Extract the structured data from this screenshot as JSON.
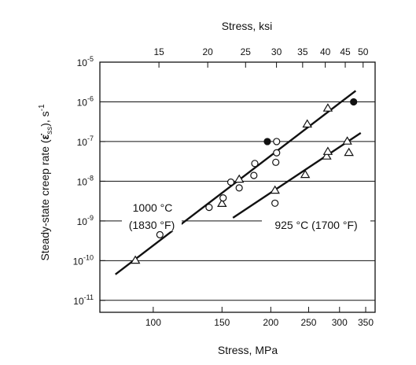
{
  "chart_data": {
    "type": "scatter",
    "xlabel_bottom": "Stress, MPa",
    "xlabel_top": "Stress, ksi",
    "ylabel_text": "Steady-state creep rate (",
    "ylabel_symbol": "ε̇",
    "ylabel_subscript": "ss",
    "ylabel_suffix": "), s",
    "ylabel_superscript": "-1",
    "x_scale": "log",
    "y_scale": "log",
    "xlim_MPa": [
      73,
      370
    ],
    "ylim": [
      5e-12,
      1e-05
    ],
    "grid": "horizontal-at-decades",
    "bottom_ticks": [
      {
        "value": 100,
        "label": "100"
      },
      {
        "value": 150,
        "label": "150"
      },
      {
        "value": 200,
        "label": "200"
      },
      {
        "value": 250,
        "label": "250"
      },
      {
        "value": 300,
        "label": "300"
      },
      {
        "value": 350,
        "label": "350"
      }
    ],
    "top_ticks": [
      {
        "value_ksi": 15,
        "label": "15"
      },
      {
        "value_ksi": 20,
        "label": "20"
      },
      {
        "value_ksi": 25,
        "label": "25"
      },
      {
        "value_ksi": 30,
        "label": "30"
      },
      {
        "value_ksi": 35,
        "label": "35"
      },
      {
        "value_ksi": 40,
        "label": "40"
      },
      {
        "value_ksi": 45,
        "label": "45"
      },
      {
        "value_ksi": 50,
        "label": "50"
      }
    ],
    "y_ticks": [
      {
        "value": 1e-05,
        "mantissa": "10",
        "exponent": "-5"
      },
      {
        "value": 1e-06,
        "mantissa": "10",
        "exponent": "-6"
      },
      {
        "value": 1e-07,
        "mantissa": "10",
        "exponent": "-7"
      },
      {
        "value": 1e-08,
        "mantissa": "10",
        "exponent": "-8"
      },
      {
        "value": 1e-09,
        "mantissa": "10",
        "exponent": "-9"
      },
      {
        "value": 1e-10,
        "mantissa": "10",
        "exponent": "-10"
      },
      {
        "value": 1e-11,
        "mantissa": "10",
        "exponent": "-11"
      }
    ],
    "series": [
      {
        "label_line1": "1000 °C",
        "label_line2": "(1830 °F)",
        "fit": {
          "x": [
            80,
            330
          ],
          "y": [
            4.5e-11,
            1.9e-06
          ]
        },
        "points": [
          {
            "x": 90,
            "y": 1e-10,
            "marker": "triangle-open"
          },
          {
            "x": 104,
            "y": 4.5e-10,
            "marker": "circle-open"
          },
          {
            "x": 139,
            "y": 2.2e-09,
            "marker": "circle-open"
          },
          {
            "x": 150,
            "y": 2.7e-09,
            "marker": "triangle-open"
          },
          {
            "x": 151,
            "y": 3.8e-09,
            "marker": "circle-open"
          },
          {
            "x": 158,
            "y": 9.5e-09,
            "marker": "circle-open"
          },
          {
            "x": 166,
            "y": 6.8e-09,
            "marker": "circle-open"
          },
          {
            "x": 166,
            "y": 1.1e-08,
            "marker": "triangle-open"
          },
          {
            "x": 181,
            "y": 1.4e-08,
            "marker": "circle-open"
          },
          {
            "x": 182,
            "y": 2.8e-08,
            "marker": "circle-open"
          },
          {
            "x": 196,
            "y": 1e-07,
            "marker": "circle-filled"
          },
          {
            "x": 206,
            "y": 3e-08,
            "marker": "circle-open"
          },
          {
            "x": 207,
            "y": 5.2e-08,
            "marker": "circle-open"
          },
          {
            "x": 207,
            "y": 1e-07,
            "marker": "circle-open"
          },
          {
            "x": 326,
            "y": 1e-06,
            "marker": "circle-filled"
          }
        ]
      },
      {
        "label": "925 °C (1700 °F)",
        "fit": {
          "x": [
            160,
            340
          ],
          "y": [
            1.2e-09,
            1.65e-07
          ]
        },
        "points": [
          {
            "x": 205,
            "y": 2.8e-09,
            "marker": "circle-open"
          },
          {
            "x": 205,
            "y": 5.8e-09,
            "marker": "triangle-open"
          },
          {
            "x": 245,
            "y": 1.45e-08,
            "marker": "triangle-open"
          },
          {
            "x": 248,
            "y": 2.7e-07,
            "marker": "triangle-open"
          },
          {
            "x": 278,
            "y": 4.2e-08,
            "marker": "triangle-open"
          },
          {
            "x": 280,
            "y": 5.5e-08,
            "marker": "triangle-open"
          },
          {
            "x": 280,
            "y": 6.8e-07,
            "marker": "triangle-open"
          },
          {
            "x": 314,
            "y": 1e-07,
            "marker": "triangle-open"
          },
          {
            "x": 317,
            "y": 5.2e-08,
            "marker": "triangle-open"
          }
        ]
      }
    ]
  }
}
